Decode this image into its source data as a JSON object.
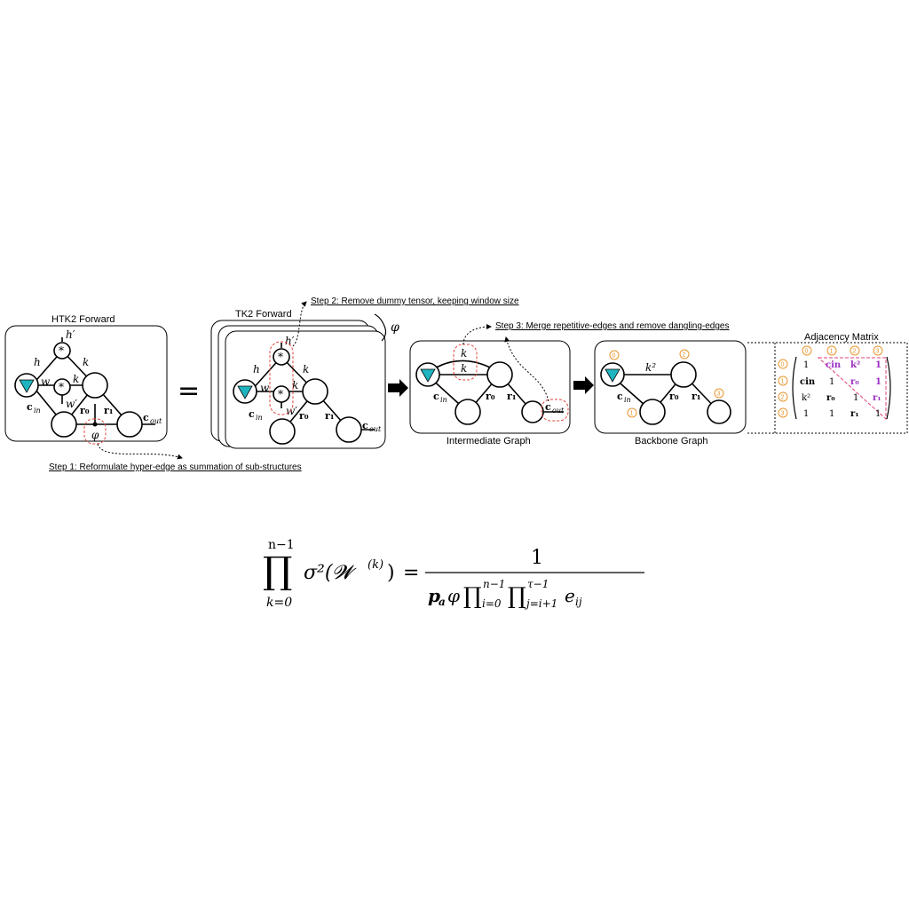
{
  "panels": {
    "htk2": "HTK2 Forward",
    "tk2": "TK2 Forward",
    "intermediate": "Intermediate Graph",
    "backbone": "Backbone Graph",
    "adjacency": "Adjacency Matrix"
  },
  "steps": {
    "step1": "Step 1: Reformulate hyper-edge as summation of sub-structures",
    "step2": "Step 2: Remove dummy tensor, keeping window size",
    "step3": "Step 3: Merge repetitive-edges and remove dangling-edges"
  },
  "symbols": {
    "equals": "=",
    "phi": "φ",
    "star": "*",
    "h": "h",
    "hp": "h′",
    "w": "w",
    "wp": "w′",
    "k": "k",
    "k2": "k²",
    "r0": "r₀",
    "r1": "r₁",
    "cin": "c",
    "cin_sub": "in",
    "cout_sub": "out"
  },
  "matrix": {
    "indices": [
      "0",
      "1",
      "2",
      "3"
    ],
    "rows": [
      [
        "1",
        "cin",
        "k²",
        "1"
      ],
      [
        "cin",
        "1",
        "r₀",
        "1"
      ],
      [
        "k²",
        "r₀",
        "1",
        "r₁"
      ],
      [
        "1",
        "1",
        "r₁",
        "1"
      ]
    ]
  },
  "formula": {
    "lhs_op": "∏",
    "lhs_upper": "n−1",
    "lhs_lower": "k=0",
    "lhs_body": "σ²(𝓦",
    "lhs_sup": "(k)",
    "eq": "=",
    "numerator": "1",
    "denominator": "p_a φ ∏_{i=0}^{n−1} ∏_{j=i+1}^{τ−1} e_ij"
  },
  "colors": {
    "teal": "#1fb5c0",
    "red_dashed": "#e0463e",
    "orange": "#e8962e",
    "purple": "#9b2fc4",
    "magenta": "#e0407a"
  }
}
